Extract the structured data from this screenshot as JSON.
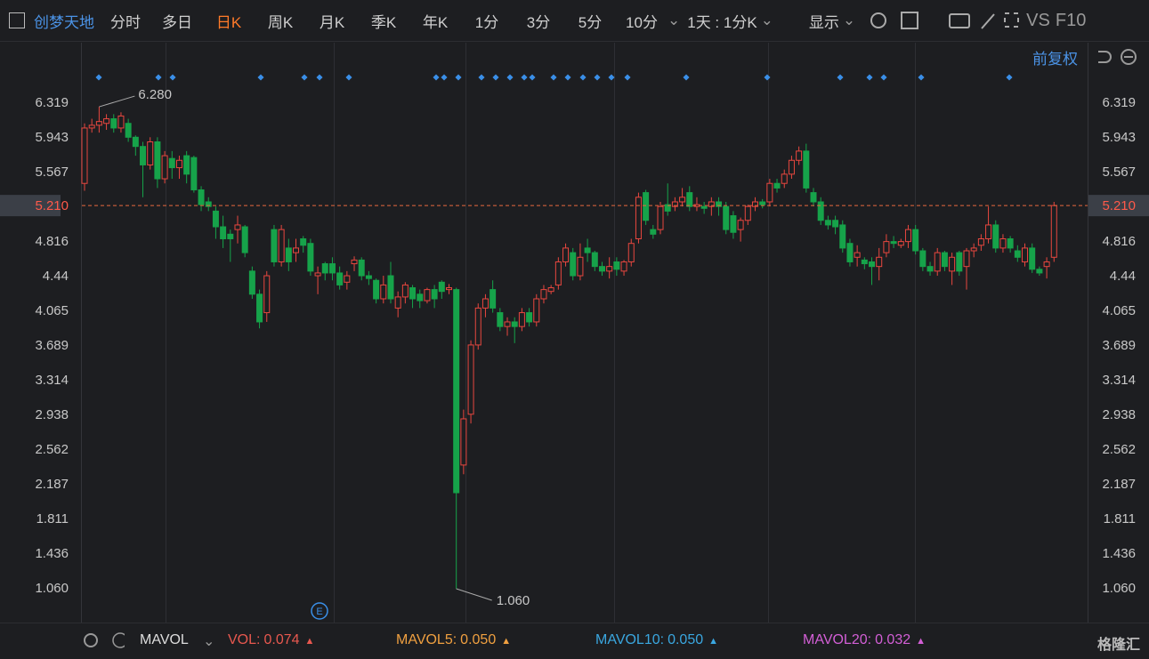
{
  "toolbar": {
    "stock": "创梦天地",
    "tabs": [
      "分时",
      "多日",
      "日K",
      "周K",
      "月K",
      "季K",
      "年K",
      "1分",
      "3分",
      "5分",
      "10分"
    ],
    "active": "日K",
    "period": "1天 : 1分K",
    "display": "显示",
    "vs": "VS",
    "f10": "F10",
    "adjust": "前复权"
  },
  "footer": {
    "indicator": "MAVOL",
    "items": [
      {
        "name": "VOL:",
        "value": "0.074",
        "color": "#e8584f"
      },
      {
        "name": "MAVOL5:",
        "value": "0.050",
        "color": "#f0a040"
      },
      {
        "name": "MAVOL10:",
        "value": "0.050",
        "color": "#3aa7e0"
      },
      {
        "name": "MAVOL20:",
        "value": "0.032",
        "color": "#d35fd6"
      }
    ],
    "logo": "格隆汇"
  },
  "chart_data": {
    "type": "candlestick",
    "up_color": "#e8473f",
    "down_color": "#16a34a",
    "ylim": [
      0.694,
      7.051
    ],
    "yticks": [
      6.319,
      5.943,
      5.567,
      4.816,
      4.44,
      4.065,
      3.689,
      3.314,
      2.938,
      2.562,
      2.187,
      1.811,
      1.436,
      {
        "value": 1.06,
        "label": "1.060"
      }
    ],
    "yticks_labels_fix": null,
    "last_price": {
      "value": 5.21,
      "label": "5.210"
    },
    "high_label": "6.280",
    "low_label": "1.060",
    "candles": [
      [
        5.45,
        6.1,
        5.37,
        6.05
      ],
      [
        6.05,
        6.15,
        6.0,
        6.08
      ],
      [
        6.08,
        6.28,
        6.0,
        6.12
      ],
      [
        6.1,
        6.2,
        6.03,
        6.15
      ],
      [
        6.15,
        6.2,
        6.0,
        6.05
      ],
      [
        6.05,
        6.22,
        6.0,
        6.18
      ],
      [
        6.1,
        6.15,
        5.9,
        5.95
      ],
      [
        5.95,
        5.97,
        5.75,
        5.85
      ],
      [
        5.85,
        5.9,
        5.3,
        5.65
      ],
      [
        5.65,
        5.95,
        5.6,
        5.9
      ],
      [
        5.9,
        5.95,
        5.4,
        5.5
      ],
      [
        5.5,
        5.8,
        5.45,
        5.75
      ],
      [
        5.72,
        5.8,
        5.5,
        5.62
      ],
      [
        5.62,
        5.75,
        5.5,
        5.7
      ],
      [
        5.75,
        5.8,
        5.45,
        5.55
      ],
      [
        5.73,
        5.75,
        5.35,
        5.38
      ],
      [
        5.38,
        5.42,
        5.15,
        5.22
      ],
      [
        5.25,
        5.3,
        5.15,
        5.2
      ],
      [
        5.15,
        5.2,
        4.85,
        4.98
      ],
      [
        4.98,
        5.1,
        4.75,
        4.85
      ],
      [
        4.9,
        4.95,
        4.6,
        4.85
      ],
      [
        4.95,
        5.1,
        4.8,
        5.0
      ],
      [
        4.98,
        5.0,
        4.65,
        4.7
      ],
      [
        4.5,
        4.55,
        4.2,
        4.25
      ],
      [
        4.25,
        4.3,
        3.88,
        3.95
      ],
      [
        4.05,
        4.5,
        3.95,
        4.45
      ],
      [
        4.95,
        5.0,
        4.55,
        4.6
      ],
      [
        4.6,
        5.0,
        4.55,
        4.95
      ],
      [
        4.75,
        4.85,
        4.5,
        4.6
      ],
      [
        4.7,
        4.85,
        4.6,
        4.75
      ],
      [
        4.85,
        4.88,
        4.7,
        4.78
      ],
      [
        4.8,
        4.85,
        4.45,
        4.5
      ],
      [
        4.45,
        4.55,
        4.25,
        4.48
      ],
      [
        4.58,
        4.6,
        4.4,
        4.48
      ],
      [
        4.58,
        4.65,
        4.4,
        4.48
      ],
      [
        4.48,
        4.55,
        4.3,
        4.35
      ],
      [
        4.38,
        4.5,
        4.3,
        4.45
      ],
      [
        4.58,
        4.66,
        4.5,
        4.62
      ],
      [
        4.62,
        4.65,
        4.4,
        4.45
      ],
      [
        4.45,
        4.5,
        4.35,
        4.42
      ],
      [
        4.4,
        4.42,
        4.15,
        4.2
      ],
      [
        4.2,
        4.45,
        4.15,
        4.35
      ],
      [
        4.45,
        4.6,
        4.15,
        4.2
      ],
      [
        4.1,
        4.28,
        4.0,
        4.22
      ],
      [
        4.22,
        4.38,
        4.15,
        4.35
      ],
      [
        4.32,
        4.35,
        4.1,
        4.2
      ],
      [
        4.25,
        4.3,
        4.1,
        4.18
      ],
      [
        4.18,
        4.32,
        4.15,
        4.3
      ],
      [
        4.3,
        4.35,
        4.1,
        4.2
      ],
      [
        4.38,
        4.4,
        4.2,
        4.28
      ],
      [
        4.3,
        4.36,
        4.25,
        4.32
      ],
      [
        4.3,
        4.32,
        1.06,
        2.1
      ],
      [
        2.4,
        3.0,
        2.3,
        2.9
      ],
      [
        2.95,
        3.75,
        2.85,
        3.7
      ],
      [
        3.7,
        4.15,
        3.65,
        4.1
      ],
      [
        4.1,
        4.25,
        4.0,
        4.2
      ],
      [
        4.3,
        4.4,
        4.05,
        4.1
      ],
      [
        4.05,
        4.1,
        3.85,
        3.9
      ],
      [
        3.9,
        4.0,
        3.8,
        3.95
      ],
      [
        3.95,
        4.0,
        3.72,
        3.9
      ],
      [
        3.9,
        4.1,
        3.85,
        4.05
      ],
      [
        4.05,
        4.1,
        3.9,
        3.95
      ],
      [
        3.95,
        4.25,
        3.9,
        4.2
      ],
      [
        4.2,
        4.35,
        4.15,
        4.3
      ],
      [
        4.28,
        4.35,
        4.25,
        4.32
      ],
      [
        4.35,
        4.65,
        4.3,
        4.6
      ],
      [
        4.6,
        4.8,
        4.55,
        4.75
      ],
      [
        4.7,
        4.75,
        4.4,
        4.45
      ],
      [
        4.45,
        4.8,
        4.4,
        4.65
      ],
      [
        4.75,
        4.85,
        4.6,
        4.7
      ],
      [
        4.7,
        4.72,
        4.5,
        4.55
      ],
      [
        4.55,
        4.6,
        4.45,
        4.5
      ],
      [
        4.5,
        4.65,
        4.42,
        4.55
      ],
      [
        4.6,
        4.65,
        4.45,
        4.52
      ],
      [
        4.5,
        4.62,
        4.45,
        4.6
      ],
      [
        4.6,
        4.85,
        4.55,
        4.8
      ],
      [
        4.85,
        5.35,
        4.8,
        5.3
      ],
      [
        5.35,
        5.38,
        5.0,
        5.05
      ],
      [
        4.95,
        5.0,
        4.85,
        4.9
      ],
      [
        4.95,
        5.25,
        4.9,
        5.2
      ],
      [
        5.22,
        5.45,
        5.1,
        5.15
      ],
      [
        5.2,
        5.3,
        5.15,
        5.25
      ],
      [
        5.25,
        5.4,
        5.2,
        5.3
      ],
      [
        5.35,
        5.42,
        5.15,
        5.2
      ],
      [
        5.2,
        5.3,
        5.15,
        5.22
      ],
      [
        5.2,
        5.25,
        5.12,
        5.18
      ],
      [
        5.2,
        5.3,
        5.1,
        5.25
      ],
      [
        5.25,
        5.3,
        5.1,
        5.2
      ],
      [
        5.2,
        5.25,
        4.9,
        4.95
      ],
      [
        5.1,
        5.15,
        4.85,
        4.92
      ],
      [
        4.95,
        5.08,
        4.82,
        5.05
      ],
      [
        5.05,
        5.22,
        5.0,
        5.2
      ],
      [
        5.2,
        5.3,
        5.15,
        5.25
      ],
      [
        5.25,
        5.28,
        5.18,
        5.22
      ],
      [
        5.25,
        5.5,
        5.2,
        5.45
      ],
      [
        5.45,
        5.5,
        5.35,
        5.4
      ],
      [
        5.45,
        5.6,
        5.4,
        5.55
      ],
      [
        5.55,
        5.75,
        5.5,
        5.7
      ],
      [
        5.7,
        5.85,
        5.65,
        5.8
      ],
      [
        5.8,
        5.88,
        5.35,
        5.4
      ],
      [
        5.35,
        5.4,
        5.2,
        5.25
      ],
      [
        5.25,
        5.3,
        5.0,
        5.05
      ],
      [
        5.05,
        5.1,
        4.95,
        5.0
      ],
      [
        5.05,
        5.1,
        4.9,
        4.98
      ],
      [
        5.0,
        5.05,
        4.7,
        4.75
      ],
      [
        4.8,
        4.85,
        4.55,
        4.6
      ],
      [
        4.65,
        4.78,
        4.55,
        4.7
      ],
      [
        4.62,
        4.65,
        4.52,
        4.58
      ],
      [
        4.6,
        4.65,
        4.35,
        4.55
      ],
      [
        4.55,
        4.75,
        4.4,
        4.65
      ],
      [
        4.7,
        4.9,
        4.65,
        4.82
      ],
      [
        4.82,
        4.88,
        4.75,
        4.8
      ],
      [
        4.78,
        4.85,
        4.75,
        4.82
      ],
      [
        4.82,
        5.0,
        4.75,
        4.95
      ],
      [
        4.95,
        5.0,
        4.68,
        4.72
      ],
      [
        4.72,
        4.75,
        4.5,
        4.55
      ],
      [
        4.55,
        4.6,
        4.45,
        4.5
      ],
      [
        4.5,
        4.75,
        4.45,
        4.7
      ],
      [
        4.7,
        4.72,
        4.5,
        4.55
      ],
      [
        4.5,
        4.7,
        4.35,
        4.65
      ],
      [
        4.7,
        4.72,
        4.45,
        4.5
      ],
      [
        4.55,
        4.75,
        4.3,
        4.72
      ],
      [
        4.72,
        4.8,
        4.65,
        4.75
      ],
      [
        4.78,
        4.9,
        4.72,
        4.85
      ],
      [
        4.85,
        5.2,
        4.8,
        5.0
      ],
      [
        5.0,
        5.05,
        4.7,
        4.75
      ],
      [
        4.75,
        4.9,
        4.7,
        4.85
      ],
      [
        4.85,
        4.88,
        4.7,
        4.75
      ],
      [
        4.72,
        4.78,
        4.6,
        4.65
      ],
      [
        4.6,
        4.8,
        4.55,
        4.75
      ],
      [
        4.75,
        4.8,
        4.48,
        4.52
      ],
      [
        4.52,
        4.55,
        4.45,
        4.48
      ],
      [
        4.55,
        4.65,
        4.42,
        4.6
      ],
      [
        4.65,
        5.25,
        4.6,
        5.21
      ]
    ]
  }
}
